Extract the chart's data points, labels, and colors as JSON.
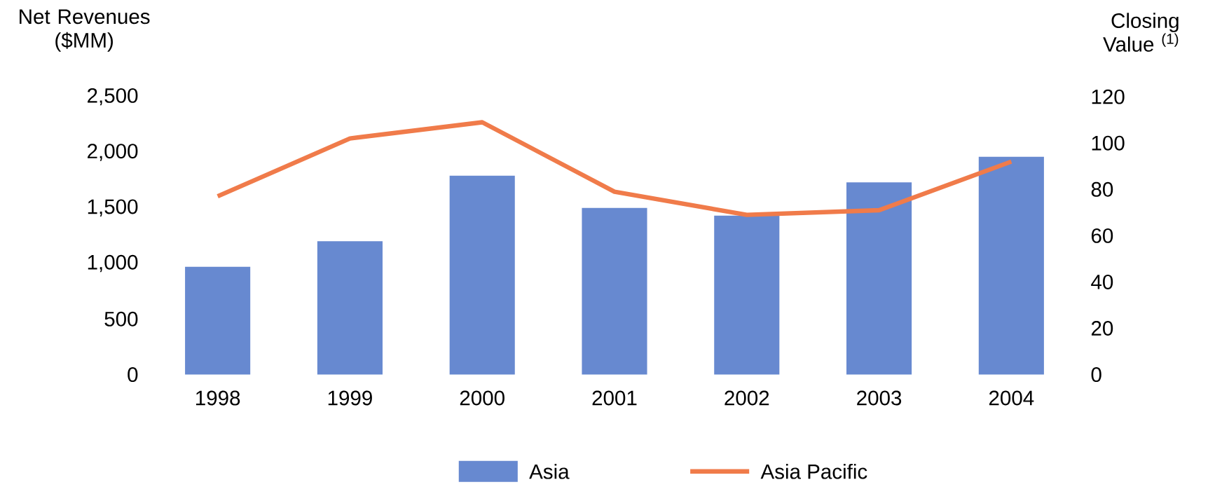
{
  "chart_data": {
    "type": "bar",
    "ylabel": "Net Revenues ($MM)",
    "y2label": "Closing Value $^{(1)}$",
    "categories": [
      "1998",
      "1999",
      "2000",
      "2001",
      "2002",
      "2003",
      "2004"
    ],
    "series": [
      {
        "name": "Asia",
        "color": "#6789d0",
        "values": [
          970,
          1200,
          1790,
          1500,
          1430,
          1730,
          1960
        ]
      },
      {
        "name": "Asia Pacific",
        "type": "line",
        "axis": "y2",
        "color": "#f07b4a",
        "values": [
          77,
          102,
          109,
          79,
          69,
          71,
          92
        ]
      }
    ],
    "ylim": [
      0,
      2500
    ],
    "yticks": [
      0,
      500,
      {
        "value": 1000,
        "label": "1,000"
      },
      {
        "value": 1500,
        "label": "1,500"
      },
      {
        "value": 2000,
        "label": "2,000"
      },
      {
        "value": 2500,
        "label": "2,500"
      }
    ],
    "y2lim": [
      0,
      120
    ],
    "y2ticks": [
      0,
      20,
      40,
      60,
      80,
      100,
      120
    ],
    "grid": false,
    "legend": "bottom",
    "marker": "none",
    "line_style": "solid"
  }
}
